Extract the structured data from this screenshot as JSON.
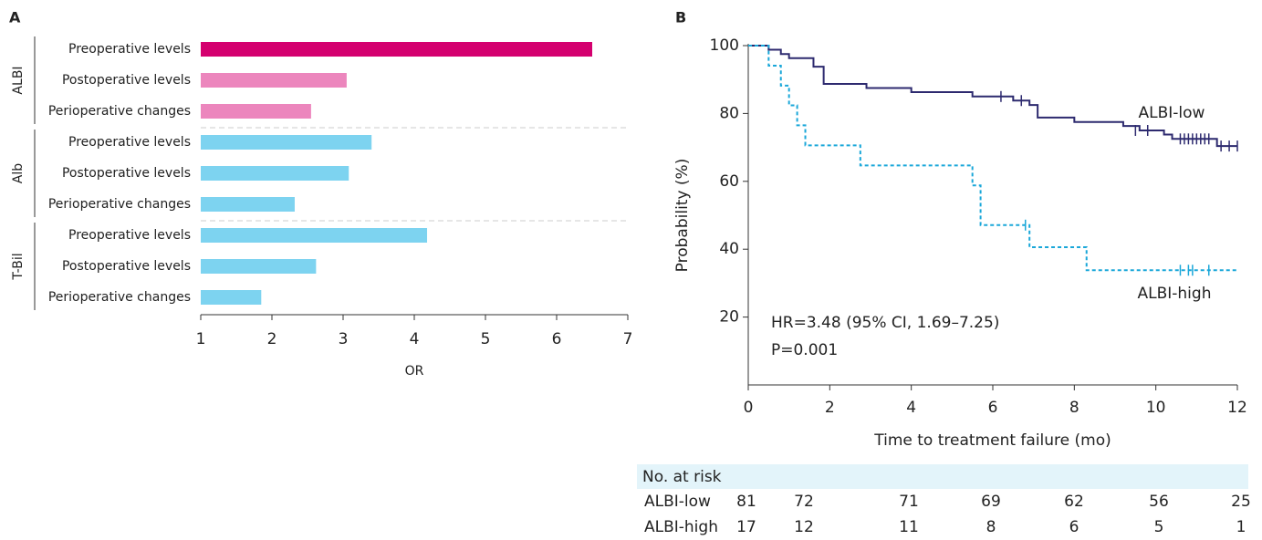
{
  "chart_data": [
    {
      "type": "bar",
      "orientation": "horizontal",
      "panel": "A",
      "xlabel": "OR",
      "xlim": [
        1,
        7
      ],
      "xticks": [
        1,
        2,
        3,
        4,
        5,
        6,
        7
      ],
      "groups": [
        {
          "name": "ALBI",
          "categories": [
            "Preoperative levels",
            "Postoperative levels",
            "Perioperative changes"
          ],
          "values": [
            6.5,
            3.05,
            2.55
          ],
          "colors": [
            "#d4006f",
            "#ec86bd",
            "#ec86bd"
          ]
        },
        {
          "name": "Alb",
          "categories": [
            "Preoperative levels",
            "Postoperative levels",
            "Perioperative changes"
          ],
          "values": [
            3.4,
            3.08,
            2.32
          ],
          "colors": [
            "#7dd3f0",
            "#7dd3f0",
            "#7dd3f0"
          ]
        },
        {
          "name": "T-Bil",
          "categories": [
            "Preoperative levels",
            "Postoperative levels",
            "Perioperative changes"
          ],
          "values": [
            4.18,
            2.62,
            1.85
          ],
          "colors": [
            "#7dd3f0",
            "#7dd3f0",
            "#7dd3f0"
          ]
        }
      ]
    },
    {
      "type": "line",
      "step": true,
      "panel": "B",
      "xlabel": "Time to treatment failure (mo)",
      "ylabel": "Probability (%)",
      "xlim": [
        0,
        12
      ],
      "xticks": [
        0,
        2,
        4,
        6,
        8,
        10,
        12
      ],
      "ylim": [
        0,
        100
      ],
      "yticks": [
        20,
        40,
        60,
        80,
        100
      ],
      "annotations": [
        "HR=3.48 (95% CI, 1.69–7.25)",
        "P=0.001"
      ],
      "series": [
        {
          "name": "ALBI-low",
          "color": "#2d2a6f",
          "dashed": false,
          "x": [
            0,
            0.5,
            0.8,
            1.0,
            1.6,
            1.85,
            2.9,
            4.0,
            5.5,
            6.5,
            6.9,
            7.1,
            8.0,
            9.2,
            9.6,
            10.2,
            10.4,
            11.5,
            12
          ],
          "values": [
            100,
            98.8,
            97.5,
            96.3,
            93.8,
            88.7,
            87.5,
            86.3,
            85,
            83.8,
            82.5,
            78.8,
            77.5,
            76.3,
            75,
            73.8,
            72.5,
            70.4,
            70.4
          ],
          "censored_x": [
            6.2,
            6.7,
            9.5,
            9.8,
            10.6,
            10.7,
            10.8,
            10.9,
            11.0,
            11.1,
            11.2,
            11.3,
            11.6,
            11.8,
            12.0
          ],
          "censored_values": [
            85,
            83.8,
            75,
            75,
            72.5,
            72.5,
            72.5,
            72.5,
            72.5,
            72.5,
            72.5,
            72.5,
            70.4,
            70.4,
            70.4
          ]
        },
        {
          "name": "ALBI-high",
          "color": "#1aa7d9",
          "dashed": true,
          "x": [
            0,
            0.5,
            0.8,
            1.0,
            1.2,
            1.4,
            2.75,
            5.5,
            5.7,
            6.9,
            8.3,
            12
          ],
          "values": [
            100,
            94.1,
            88.2,
            82.4,
            76.5,
            70.6,
            64.7,
            58.8,
            47.1,
            40.6,
            33.8,
            33.8
          ],
          "censored_x": [
            6.8,
            10.6,
            10.8,
            10.9,
            11.3
          ],
          "censored_values": [
            47.1,
            33.8,
            33.8,
            33.8,
            33.8
          ]
        }
      ],
      "risk_table": {
        "title": "No. at risk",
        "rows": [
          {
            "name": "ALBI-low",
            "values": [
              81,
              72,
              71,
              69,
              62,
              56,
              25
            ]
          },
          {
            "name": "ALBI-high",
            "values": [
              17,
              12,
              11,
              8,
              6,
              5,
              1
            ]
          }
        ]
      }
    }
  ]
}
